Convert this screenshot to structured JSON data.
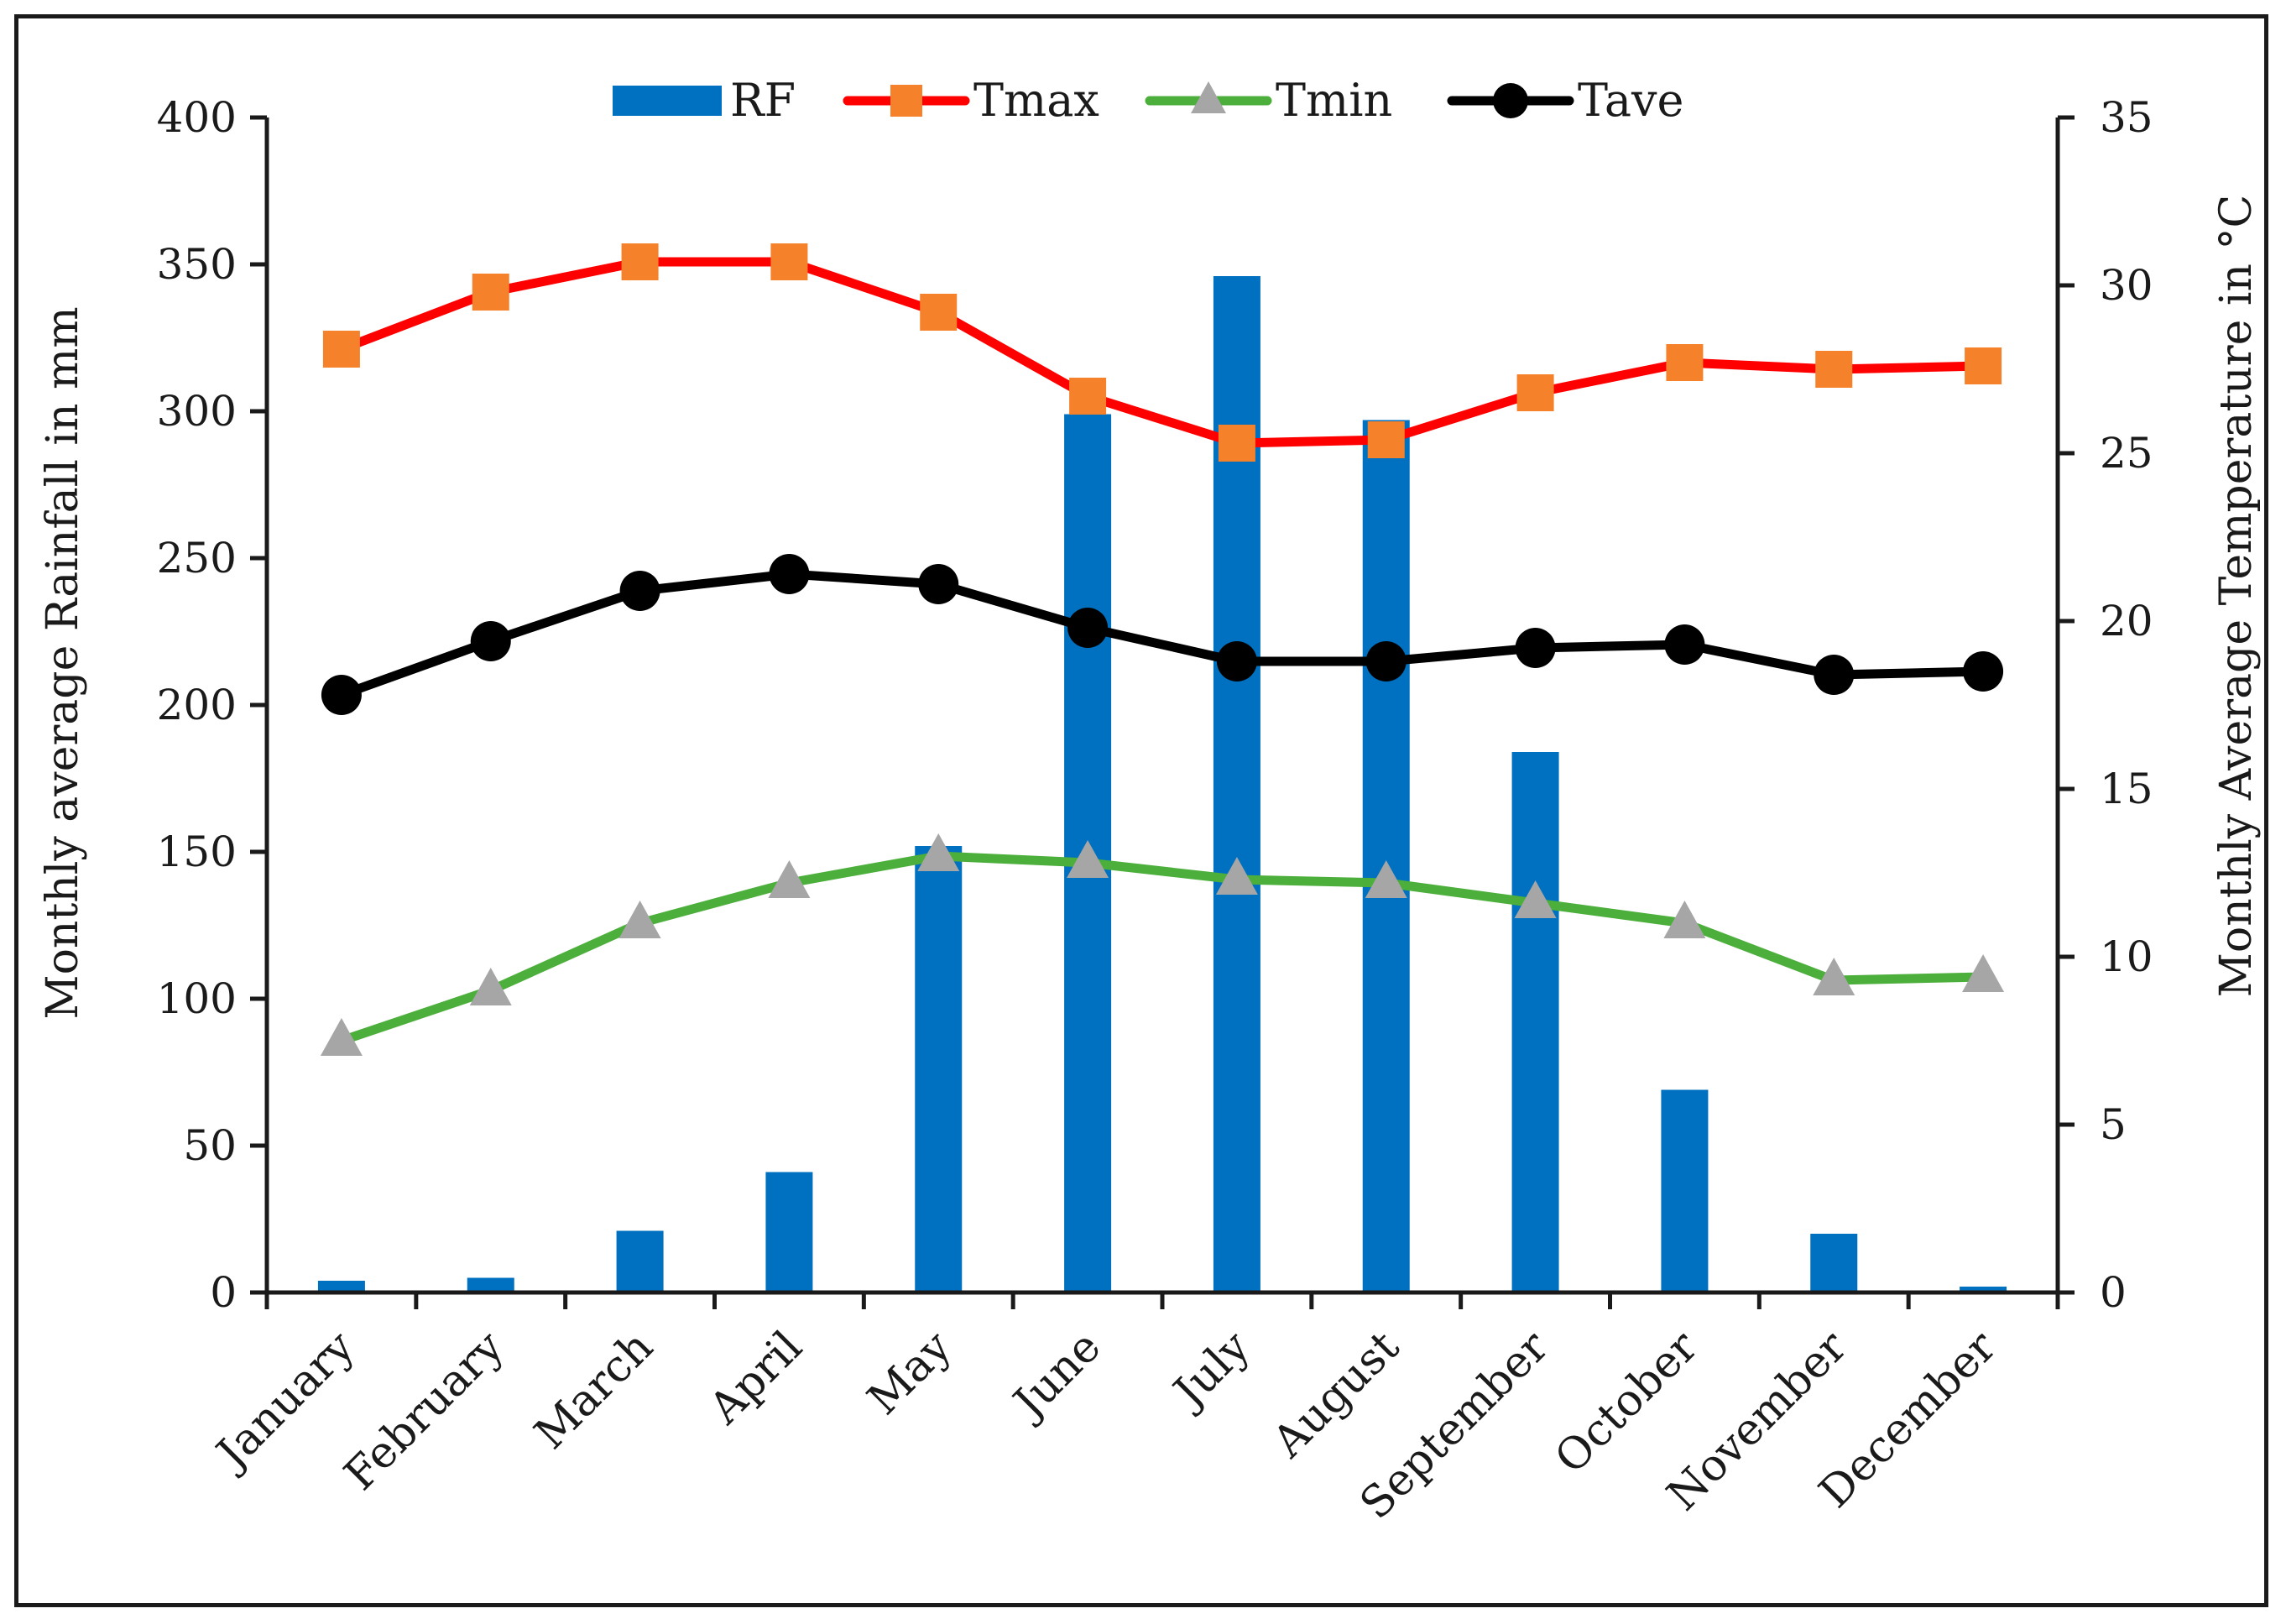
{
  "chart_data": {
    "type": "bar-line",
    "categories": [
      "January",
      "February",
      "March",
      "April",
      "May",
      "June",
      "July",
      "August",
      "September",
      "October",
      "November",
      "December"
    ],
    "series": [
      {
        "name": "RF",
        "kind": "bar",
        "axis": "left",
        "color": "#0070C0",
        "values": [
          4,
          5,
          21,
          41,
          152,
          299,
          346,
          297,
          184,
          69,
          20,
          2
        ]
      },
      {
        "name": "Tmax",
        "kind": "line",
        "axis": "right",
        "color": "#FF0000",
        "marker": "square",
        "marker_color": "#F5822A",
        "values": [
          28.1,
          29.8,
          30.7,
          30.7,
          29.2,
          26.7,
          25.3,
          25.4,
          26.8,
          27.7,
          27.5,
          27.6
        ]
      },
      {
        "name": "Tmin",
        "kind": "line",
        "axis": "right",
        "color": "#4CAF3B",
        "marker": "triangle",
        "marker_color": "#A6A6A6",
        "values": [
          7.5,
          9.0,
          11.0,
          12.2,
          13.0,
          12.8,
          12.3,
          12.2,
          11.6,
          11.0,
          9.3,
          9.4
        ]
      },
      {
        "name": "Tave",
        "kind": "line",
        "axis": "right",
        "color": "#000000",
        "marker": "circle",
        "marker_color": "#000000",
        "values": [
          17.8,
          19.4,
          20.9,
          21.4,
          21.1,
          19.8,
          18.8,
          18.8,
          19.2,
          19.3,
          18.4,
          18.5
        ]
      }
    ],
    "y_left": {
      "label": "Monthly average Rainfall in mm",
      "min": 0,
      "max": 400,
      "ticks": [
        "0",
        "50",
        "100",
        "150",
        "200",
        "250",
        "300",
        "350",
        "400"
      ]
    },
    "y_right": {
      "label": "Monthly Average Temperature in °C",
      "min": 0,
      "max": 35,
      "ticks": [
        "0",
        "5",
        "10",
        "15",
        "20",
        "25",
        "30",
        "35"
      ]
    },
    "legend": {
      "position": "top-center",
      "entries": [
        "RF",
        "Tmax",
        "Tmin",
        "Tave"
      ]
    },
    "grid": false
  }
}
